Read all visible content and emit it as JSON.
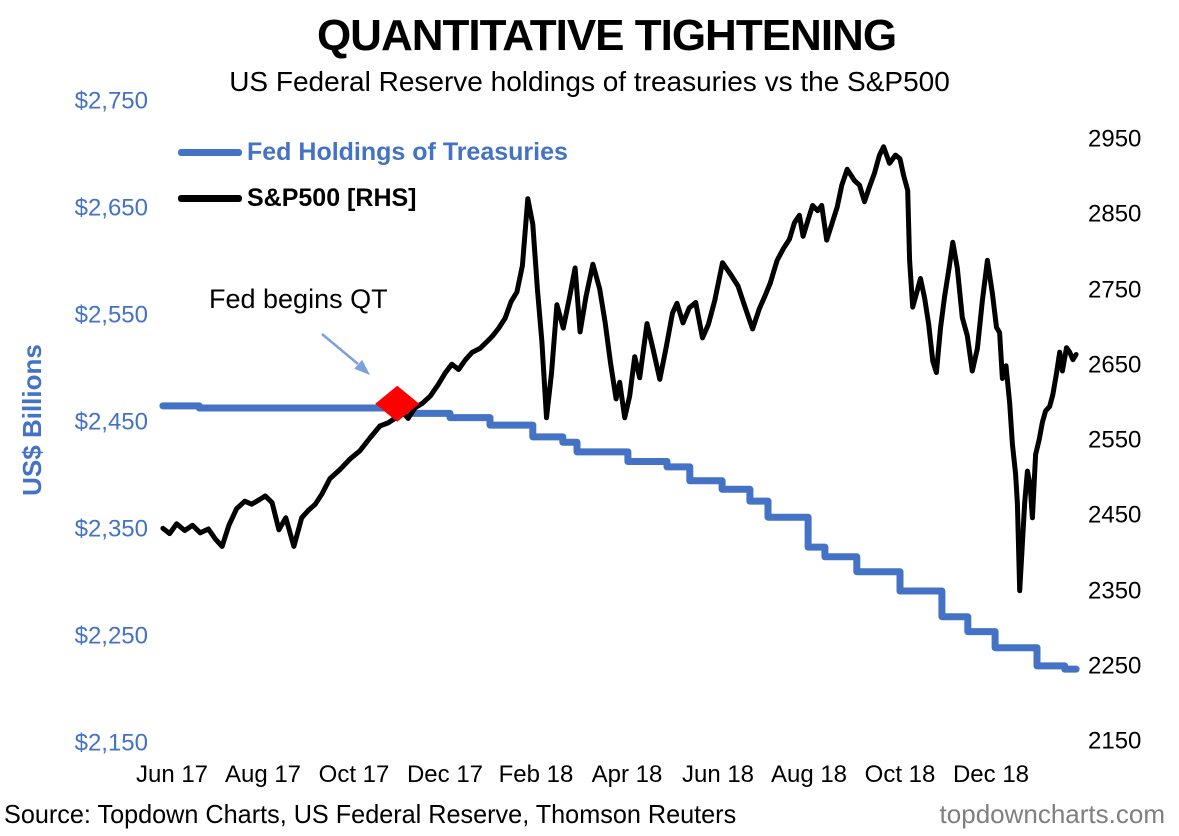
{
  "title": "QUANTITATIVE TIGHTENING",
  "subtitle": "US Federal Reserve holdings of treasuries vs the S&P500",
  "legend": {
    "fed_label": "Fed Holdings of Treasuries",
    "sp500_label": "S&P500 [RHS]"
  },
  "annotation": {
    "text": "Fed begins QT"
  },
  "footer": {
    "source": "Source: Topdown Charts, US Federal Reserve, Thomson Reuters",
    "website": "topdowncharts.com"
  },
  "colors": {
    "fed_line": "#4472C4",
    "sp500_line": "#000000",
    "marker": "#FF0000",
    "arrow": "#7CA1DB",
    "axis_blue": "#4472C4",
    "footer_gray": "#7F7F7F"
  },
  "chart_data": {
    "type": "line",
    "title": "QUANTITATIVE TIGHTENING",
    "subtitle": "US Federal Reserve holdings of treasuries vs the S&P500",
    "x_axis": {
      "tick_labels": [
        "Jun 17",
        "Aug 17",
        "Oct 17",
        "Dec 17",
        "Feb 18",
        "Apr 18",
        "Jun 18",
        "Aug 18",
        "Oct 18",
        "Dec 18"
      ],
      "tick_months": [
        0,
        2,
        4,
        6,
        8,
        10,
        12,
        14,
        16,
        18
      ],
      "range_months": [
        -0.2,
        19.9
      ]
    },
    "y_left": {
      "label": "US$ Billions",
      "tick_labels": [
        "$2,750",
        "$2,650",
        "$2,550",
        "$2,450",
        "$2,350",
        "$2,250",
        "$2,150"
      ],
      "tick_values": [
        2750,
        2650,
        2550,
        2450,
        2350,
        2250,
        2150
      ],
      "range": [
        2150,
        2750
      ],
      "grid": false
    },
    "y_right": {
      "tick_labels": [
        "2950",
        "2850",
        "2750",
        "2650",
        "2550",
        "2450",
        "2350",
        "2250",
        "2150"
      ],
      "tick_values": [
        2950,
        2850,
        2750,
        2650,
        2550,
        2450,
        2350,
        2250,
        2150
      ],
      "range": [
        2150,
        2950
      ],
      "grid": false
    },
    "legend_position": "top-left",
    "event_marker": {
      "label": "Fed begins QT",
      "month": 4.95,
      "value_left": 2468,
      "shape": "diamond",
      "color": "#FF0000"
    },
    "series": [
      {
        "name": "Fed Holdings of Treasuries",
        "axis": "left",
        "color": "#4472C4",
        "style": "step",
        "stroke_width": 7,
        "points": [
          [
            -0.2,
            2466
          ],
          [
            0.6,
            2464
          ],
          [
            5.01,
            2459
          ],
          [
            6.11,
            2455
          ],
          [
            6.99,
            2448
          ],
          [
            7.93,
            2437
          ],
          [
            8.59,
            2432
          ],
          [
            8.9,
            2423
          ],
          [
            10.02,
            2414
          ],
          [
            10.88,
            2409
          ],
          [
            11.38,
            2396
          ],
          [
            12.09,
            2388
          ],
          [
            12.7,
            2377
          ],
          [
            13.1,
            2362
          ],
          [
            13.98,
            2334
          ],
          [
            14.35,
            2325
          ],
          [
            15.05,
            2311
          ],
          [
            16.0,
            2293
          ],
          [
            16.92,
            2269
          ],
          [
            17.49,
            2255
          ],
          [
            18.09,
            2240
          ],
          [
            19.01,
            2223
          ],
          [
            19.62,
            2220
          ],
          [
            19.87,
            2220
          ]
        ]
      },
      {
        "name": "S&P500 [RHS]",
        "axis": "right",
        "color": "#000000",
        "style": "line",
        "stroke_width": 5,
        "points": [
          [
            -0.2,
            2434
          ],
          [
            -0.05,
            2427
          ],
          [
            0.1,
            2440
          ],
          [
            0.28,
            2431
          ],
          [
            0.45,
            2438
          ],
          [
            0.62,
            2428
          ],
          [
            0.8,
            2433
          ],
          [
            0.95,
            2420
          ],
          [
            1.1,
            2410
          ],
          [
            1.25,
            2438
          ],
          [
            1.42,
            2460
          ],
          [
            1.6,
            2470
          ],
          [
            1.75,
            2466
          ],
          [
            1.92,
            2472
          ],
          [
            2.05,
            2477
          ],
          [
            2.2,
            2468
          ],
          [
            2.35,
            2432
          ],
          [
            2.5,
            2448
          ],
          [
            2.68,
            2410
          ],
          [
            2.85,
            2448
          ],
          [
            3.0,
            2458
          ],
          [
            3.15,
            2466
          ],
          [
            3.3,
            2480
          ],
          [
            3.47,
            2500
          ],
          [
            3.69,
            2512
          ],
          [
            3.91,
            2526
          ],
          [
            4.13,
            2537
          ],
          [
            4.35,
            2554
          ],
          [
            4.57,
            2570
          ],
          [
            4.75,
            2574
          ],
          [
            4.9,
            2580
          ],
          [
            5.05,
            2590
          ],
          [
            5.19,
            2580
          ],
          [
            5.34,
            2594
          ],
          [
            5.5,
            2600
          ],
          [
            5.68,
            2610
          ],
          [
            5.85,
            2625
          ],
          [
            6.0,
            2640
          ],
          [
            6.15,
            2652
          ],
          [
            6.3,
            2645
          ],
          [
            6.45,
            2658
          ],
          [
            6.6,
            2668
          ],
          [
            6.77,
            2673
          ],
          [
            6.92,
            2682
          ],
          [
            7.05,
            2690
          ],
          [
            7.18,
            2700
          ],
          [
            7.32,
            2713
          ],
          [
            7.45,
            2735
          ],
          [
            7.58,
            2748
          ],
          [
            7.7,
            2783
          ],
          [
            7.82,
            2872
          ],
          [
            7.93,
            2838
          ],
          [
            8.03,
            2752
          ],
          [
            8.13,
            2682
          ],
          [
            8.23,
            2581
          ],
          [
            8.34,
            2640
          ],
          [
            8.46,
            2731
          ],
          [
            8.6,
            2700
          ],
          [
            8.74,
            2742
          ],
          [
            8.86,
            2780
          ],
          [
            8.97,
            2695
          ],
          [
            9.1,
            2742
          ],
          [
            9.25,
            2785
          ],
          [
            9.4,
            2752
          ],
          [
            9.52,
            2707
          ],
          [
            9.64,
            2653
          ],
          [
            9.76,
            2606
          ],
          [
            9.84,
            2628
          ],
          [
            9.95,
            2581
          ],
          [
            10.06,
            2610
          ],
          [
            10.17,
            2662
          ],
          [
            10.28,
            2634
          ],
          [
            10.44,
            2706
          ],
          [
            10.58,
            2670
          ],
          [
            10.72,
            2632
          ],
          [
            10.86,
            2674
          ],
          [
            11.0,
            2720
          ],
          [
            11.1,
            2733
          ],
          [
            11.23,
            2707
          ],
          [
            11.37,
            2727
          ],
          [
            11.51,
            2734
          ],
          [
            11.66,
            2687
          ],
          [
            11.79,
            2705
          ],
          [
            11.93,
            2737
          ],
          [
            12.1,
            2787
          ],
          [
            12.27,
            2772
          ],
          [
            12.44,
            2756
          ],
          [
            12.6,
            2727
          ],
          [
            12.76,
            2699
          ],
          [
            12.91,
            2726
          ],
          [
            13.02,
            2741
          ],
          [
            13.15,
            2760
          ],
          [
            13.3,
            2790
          ],
          [
            13.44,
            2806
          ],
          [
            13.57,
            2818
          ],
          [
            13.68,
            2840
          ],
          [
            13.79,
            2850
          ],
          [
            13.87,
            2822
          ],
          [
            13.97,
            2842
          ],
          [
            14.08,
            2863
          ],
          [
            14.19,
            2856
          ],
          [
            14.28,
            2863
          ],
          [
            14.39,
            2817
          ],
          [
            14.51,
            2840
          ],
          [
            14.62,
            2861
          ],
          [
            14.72,
            2890
          ],
          [
            14.84,
            2911
          ],
          [
            15.0,
            2896
          ],
          [
            15.11,
            2890
          ],
          [
            15.22,
            2868
          ],
          [
            15.33,
            2888
          ],
          [
            15.44,
            2906
          ],
          [
            15.55,
            2930
          ],
          [
            15.64,
            2941
          ],
          [
            15.77,
            2919
          ],
          [
            15.9,
            2930
          ],
          [
            16.0,
            2925
          ],
          [
            16.08,
            2903
          ],
          [
            16.17,
            2883
          ],
          [
            16.21,
            2790
          ],
          [
            16.28,
            2728
          ],
          [
            16.38,
            2750
          ],
          [
            16.45,
            2766
          ],
          [
            16.54,
            2740
          ],
          [
            16.63,
            2705
          ],
          [
            16.72,
            2656
          ],
          [
            16.8,
            2641
          ],
          [
            16.89,
            2700
          ],
          [
            16.98,
            2742
          ],
          [
            17.08,
            2780
          ],
          [
            17.16,
            2814
          ],
          [
            17.26,
            2780
          ],
          [
            17.37,
            2714
          ],
          [
            17.48,
            2690
          ],
          [
            17.59,
            2643
          ],
          [
            17.7,
            2673
          ],
          [
            17.81,
            2737
          ],
          [
            17.92,
            2790
          ],
          [
            18.03,
            2746
          ],
          [
            18.12,
            2701
          ],
          [
            18.19,
            2694
          ],
          [
            18.25,
            2633
          ],
          [
            18.33,
            2650
          ],
          [
            18.41,
            2600
          ],
          [
            18.47,
            2546
          ],
          [
            18.54,
            2506
          ],
          [
            18.58,
            2467
          ],
          [
            18.63,
            2351
          ],
          [
            18.74,
            2468
          ],
          [
            18.8,
            2510
          ],
          [
            18.86,
            2492
          ],
          [
            18.91,
            2448
          ],
          [
            18.98,
            2532
          ],
          [
            19.06,
            2552
          ],
          [
            19.13,
            2575
          ],
          [
            19.2,
            2590
          ],
          [
            19.29,
            2596
          ],
          [
            19.36,
            2612
          ],
          [
            19.44,
            2640
          ],
          [
            19.51,
            2668
          ],
          [
            19.57,
            2643
          ],
          [
            19.66,
            2674
          ],
          [
            19.73,
            2668
          ],
          [
            19.8,
            2658
          ],
          [
            19.87,
            2665
          ]
        ]
      }
    ]
  }
}
